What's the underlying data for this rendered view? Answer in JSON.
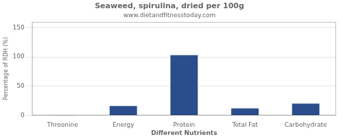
{
  "chart_data": {
    "type": "bar",
    "title": "Seaweed, spirulina, dried per 100g",
    "subtitle": "www.dietandfitnesstoday.com",
    "xlabel": "Different Nutrients",
    "ylabel": "Percentage of RDH (%)",
    "categories": [
      "Threonine",
      "Energy",
      "Protein",
      "Total Fat",
      "Carbohydrate"
    ],
    "values": [
      0.3,
      16,
      103,
      12,
      20
    ],
    "color": "#2b4d8c",
    "ylim": [
      0,
      160
    ],
    "yticks": [
      0,
      50,
      100,
      150
    ],
    "grid": true
  }
}
